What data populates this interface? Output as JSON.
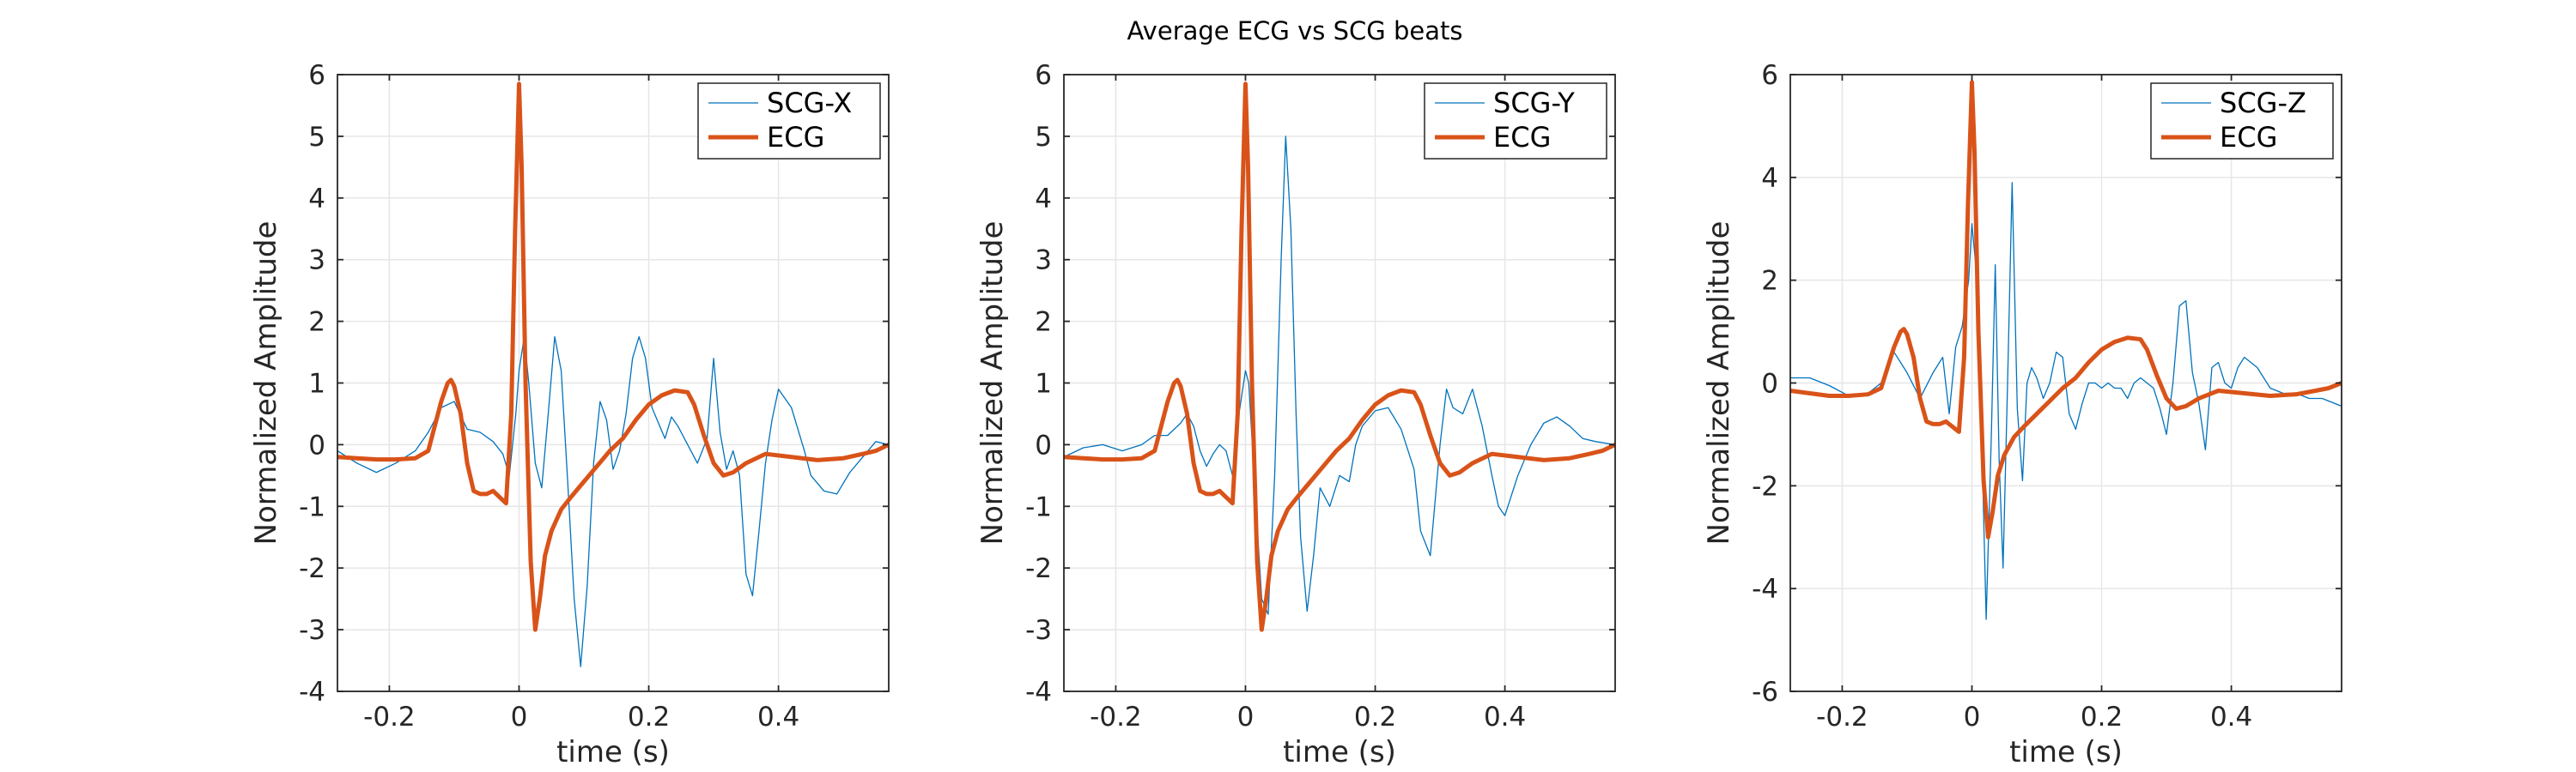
{
  "figure": {
    "title": "Average ECG vs SCG beats"
  },
  "chart_data": [
    {
      "type": "line",
      "xlabel": "time (s)",
      "ylabel": "Normalized Amplitude",
      "xlim": [
        -0.28,
        0.57
      ],
      "ylim": [
        -4,
        6
      ],
      "xticks": [
        -0.2,
        0,
        0.2,
        0.4
      ],
      "xtick_labels": [
        "-0.2",
        "0",
        "0.2",
        "0.4"
      ],
      "yticks": [
        -4,
        -3,
        -2,
        -1,
        0,
        1,
        2,
        3,
        4,
        5,
        6
      ],
      "ytick_labels": [
        "-4",
        "-3",
        "-2",
        "-1",
        "0",
        "1",
        "2",
        "3",
        "4",
        "5",
        "6"
      ],
      "grid": true,
      "legend_position": "top-right",
      "series": [
        {
          "name": "SCG-X",
          "color": "#0072BD",
          "line_width": "thin",
          "x": [
            -0.28,
            -0.25,
            -0.22,
            -0.19,
            -0.16,
            -0.14,
            -0.12,
            -0.1,
            -0.08,
            -0.06,
            -0.04,
            -0.025,
            -0.015,
            -0.005,
            0.0,
            0.008,
            0.015,
            0.025,
            0.035,
            0.045,
            0.055,
            0.065,
            0.075,
            0.085,
            0.095,
            0.105,
            0.115,
            0.125,
            0.135,
            0.145,
            0.155,
            0.165,
            0.175,
            0.185,
            0.195,
            0.205,
            0.215,
            0.225,
            0.235,
            0.245,
            0.26,
            0.275,
            0.29,
            0.3,
            0.31,
            0.32,
            0.33,
            0.34,
            0.35,
            0.36,
            0.37,
            0.38,
            0.39,
            0.4,
            0.42,
            0.44,
            0.45,
            0.47,
            0.49,
            0.51,
            0.53,
            0.55,
            0.57
          ],
          "y": [
            -0.1,
            -0.3,
            -0.45,
            -0.3,
            -0.1,
            0.2,
            0.6,
            0.7,
            0.25,
            0.2,
            0.05,
            -0.15,
            -0.5,
            0.5,
            1.2,
            1.75,
            1.0,
            -0.3,
            -0.7,
            0.5,
            1.75,
            1.2,
            -0.6,
            -2.5,
            -3.6,
            -2.3,
            -0.3,
            0.7,
            0.4,
            -0.4,
            -0.1,
            0.5,
            1.4,
            1.75,
            1.4,
            0.6,
            0.35,
            0.1,
            0.45,
            0.3,
            0.0,
            -0.3,
            0.1,
            1.4,
            0.2,
            -0.4,
            -0.1,
            -0.5,
            -2.1,
            -2.45,
            -1.4,
            -0.3,
            0.4,
            0.9,
            0.6,
            -0.1,
            -0.5,
            -0.75,
            -0.8,
            -0.45,
            -0.2,
            0.05,
            0.0
          ]
        },
        {
          "name": "ECG",
          "color": "#D95319",
          "line_width": "thick",
          "x": [
            -0.28,
            -0.25,
            -0.22,
            -0.19,
            -0.16,
            -0.14,
            -0.13,
            -0.12,
            -0.11,
            -0.105,
            -0.1,
            -0.09,
            -0.08,
            -0.07,
            -0.06,
            -0.05,
            -0.04,
            -0.03,
            -0.02,
            -0.012,
            -0.006,
            0.0,
            0.004,
            0.01,
            0.018,
            0.025,
            0.032,
            0.04,
            0.05,
            0.065,
            0.08,
            0.1,
            0.12,
            0.14,
            0.16,
            0.18,
            0.2,
            0.22,
            0.24,
            0.26,
            0.27,
            0.285,
            0.3,
            0.315,
            0.33,
            0.35,
            0.38,
            0.42,
            0.46,
            0.5,
            0.53,
            0.55,
            0.57
          ],
          "y": [
            -0.2,
            -0.22,
            -0.24,
            -0.24,
            -0.22,
            -0.1,
            0.3,
            0.7,
            1.0,
            1.05,
            0.95,
            0.5,
            -0.3,
            -0.75,
            -0.8,
            -0.8,
            -0.75,
            -0.85,
            -0.95,
            0.5,
            3.5,
            5.85,
            4.5,
            1.0,
            -1.9,
            -3.0,
            -2.5,
            -1.8,
            -1.4,
            -1.05,
            -0.85,
            -0.6,
            -0.35,
            -0.1,
            0.1,
            0.4,
            0.65,
            0.8,
            0.88,
            0.85,
            0.65,
            0.15,
            -0.3,
            -0.5,
            -0.45,
            -0.3,
            -0.15,
            -0.2,
            -0.25,
            -0.22,
            -0.15,
            -0.1,
            0.0
          ]
        }
      ]
    },
    {
      "type": "line",
      "xlabel": "time (s)",
      "ylabel": "Normalized Amplitude",
      "xlim": [
        -0.28,
        0.57
      ],
      "ylim": [
        -4,
        6
      ],
      "xticks": [
        -0.2,
        0,
        0.2,
        0.4
      ],
      "xtick_labels": [
        "-0.2",
        "0",
        "0.2",
        "0.4"
      ],
      "yticks": [
        -4,
        -3,
        -2,
        -1,
        0,
        1,
        2,
        3,
        4,
        5,
        6
      ],
      "ytick_labels": [
        "-4",
        "-3",
        "-2",
        "-1",
        "0",
        "1",
        "2",
        "3",
        "4",
        "5",
        "6"
      ],
      "grid": true,
      "legend_position": "top-right",
      "series": [
        {
          "name": "SCG-Y",
          "color": "#0072BD",
          "line_width": "thin",
          "x": [
            -0.28,
            -0.25,
            -0.22,
            -0.19,
            -0.16,
            -0.14,
            -0.12,
            -0.1,
            -0.09,
            -0.08,
            -0.07,
            -0.06,
            -0.05,
            -0.04,
            -0.03,
            -0.02,
            -0.01,
            0.0,
            0.005,
            0.015,
            0.025,
            0.035,
            0.045,
            0.055,
            0.062,
            0.07,
            0.078,
            0.085,
            0.095,
            0.105,
            0.115,
            0.13,
            0.145,
            0.16,
            0.17,
            0.18,
            0.2,
            0.22,
            0.24,
            0.26,
            0.27,
            0.285,
            0.3,
            0.31,
            0.32,
            0.335,
            0.35,
            0.365,
            0.38,
            0.39,
            0.4,
            0.42,
            0.44,
            0.46,
            0.48,
            0.5,
            0.52,
            0.54,
            0.57
          ],
          "y": [
            -0.2,
            -0.05,
            0.0,
            -0.1,
            0.0,
            0.15,
            0.15,
            0.35,
            0.5,
            0.3,
            -0.1,
            -0.35,
            -0.15,
            0.0,
            -0.1,
            -0.5,
            0.5,
            1.2,
            1.0,
            -0.8,
            -2.5,
            -2.75,
            -0.5,
            3.0,
            5.0,
            3.5,
            0.5,
            -1.5,
            -2.7,
            -1.8,
            -0.7,
            -1.0,
            -0.5,
            -0.6,
            0.0,
            0.3,
            0.55,
            0.6,
            0.25,
            -0.4,
            -1.4,
            -1.8,
            0.0,
            0.9,
            0.6,
            0.5,
            0.9,
            0.3,
            -0.5,
            -1.0,
            -1.15,
            -0.5,
            0.0,
            0.35,
            0.45,
            0.3,
            0.1,
            0.05,
            0.0
          ]
        },
        {
          "name": "ECG",
          "color": "#D95319",
          "line_width": "thick",
          "x": [
            -0.28,
            -0.25,
            -0.22,
            -0.19,
            -0.16,
            -0.14,
            -0.13,
            -0.12,
            -0.11,
            -0.105,
            -0.1,
            -0.09,
            -0.08,
            -0.07,
            -0.06,
            -0.05,
            -0.04,
            -0.03,
            -0.02,
            -0.012,
            -0.006,
            0.0,
            0.004,
            0.01,
            0.018,
            0.025,
            0.032,
            0.04,
            0.05,
            0.065,
            0.08,
            0.1,
            0.12,
            0.14,
            0.16,
            0.18,
            0.2,
            0.22,
            0.24,
            0.26,
            0.27,
            0.285,
            0.3,
            0.315,
            0.33,
            0.35,
            0.38,
            0.42,
            0.46,
            0.5,
            0.53,
            0.55,
            0.57
          ],
          "y": [
            -0.2,
            -0.22,
            -0.24,
            -0.24,
            -0.22,
            -0.1,
            0.3,
            0.7,
            1.0,
            1.05,
            0.95,
            0.5,
            -0.3,
            -0.75,
            -0.8,
            -0.8,
            -0.75,
            -0.85,
            -0.95,
            0.5,
            3.5,
            5.85,
            4.5,
            1.0,
            -1.9,
            -3.0,
            -2.5,
            -1.8,
            -1.4,
            -1.05,
            -0.85,
            -0.6,
            -0.35,
            -0.1,
            0.1,
            0.4,
            0.65,
            0.8,
            0.88,
            0.85,
            0.65,
            0.15,
            -0.3,
            -0.5,
            -0.45,
            -0.3,
            -0.15,
            -0.2,
            -0.25,
            -0.22,
            -0.15,
            -0.1,
            0.0
          ]
        }
      ]
    },
    {
      "type": "line",
      "xlabel": "time (s)",
      "ylabel": "Normalized Amplitude",
      "xlim": [
        -0.28,
        0.57
      ],
      "ylim": [
        -6,
        6
      ],
      "xticks": [
        -0.2,
        0,
        0.2,
        0.4
      ],
      "xtick_labels": [
        "-0.2",
        "0",
        "0.2",
        "0.4"
      ],
      "yticks": [
        -6,
        -4,
        -2,
        0,
        2,
        4,
        6
      ],
      "ytick_labels": [
        "-6",
        "-4",
        "-2",
        "0",
        "2",
        "4",
        "6"
      ],
      "grid": true,
      "legend_position": "top-right",
      "series": [
        {
          "name": "SCG-Z",
          "color": "#0072BD",
          "line_width": "thin",
          "x": [
            -0.28,
            -0.25,
            -0.22,
            -0.19,
            -0.16,
            -0.14,
            -0.12,
            -0.1,
            -0.08,
            -0.06,
            -0.045,
            -0.035,
            -0.025,
            -0.015,
            -0.005,
            0.0,
            0.008,
            0.015,
            0.022,
            0.03,
            0.036,
            0.042,
            0.048,
            0.055,
            0.062,
            0.07,
            0.078,
            0.085,
            0.092,
            0.1,
            0.11,
            0.12,
            0.13,
            0.14,
            0.15,
            0.16,
            0.17,
            0.18,
            0.19,
            0.2,
            0.21,
            0.22,
            0.23,
            0.24,
            0.25,
            0.26,
            0.27,
            0.28,
            0.29,
            0.3,
            0.31,
            0.32,
            0.33,
            0.34,
            0.35,
            0.36,
            0.37,
            0.38,
            0.39,
            0.4,
            0.41,
            0.42,
            0.44,
            0.46,
            0.48,
            0.5,
            0.52,
            0.54,
            0.57
          ],
          "y": [
            0.1,
            0.1,
            -0.05,
            -0.25,
            -0.2,
            0.0,
            0.6,
            0.2,
            -0.3,
            0.2,
            0.5,
            -0.6,
            0.7,
            1.1,
            2.0,
            3.1,
            2.0,
            -1.0,
            -4.6,
            -1.0,
            2.3,
            -1.5,
            -3.6,
            0.0,
            3.9,
            -0.5,
            -1.9,
            0.0,
            0.3,
            0.1,
            -0.3,
            0.0,
            0.6,
            0.5,
            -0.6,
            -0.9,
            -0.4,
            0.0,
            0.0,
            -0.1,
            0.0,
            -0.1,
            -0.1,
            -0.3,
            0.0,
            0.1,
            0.0,
            -0.1,
            -0.5,
            -1.0,
            0.0,
            1.5,
            1.6,
            0.2,
            -0.4,
            -1.3,
            0.3,
            0.4,
            0.0,
            -0.1,
            0.3,
            0.5,
            0.3,
            -0.1,
            -0.2,
            -0.2,
            -0.3,
            -0.3,
            -0.45
          ]
        },
        {
          "name": "ECG",
          "color": "#D95319",
          "line_width": "thick",
          "x": [
            -0.28,
            -0.25,
            -0.22,
            -0.19,
            -0.16,
            -0.14,
            -0.13,
            -0.12,
            -0.11,
            -0.105,
            -0.1,
            -0.09,
            -0.08,
            -0.07,
            -0.06,
            -0.05,
            -0.04,
            -0.03,
            -0.02,
            -0.012,
            -0.006,
            0.0,
            0.004,
            0.01,
            0.018,
            0.025,
            0.032,
            0.04,
            0.05,
            0.065,
            0.08,
            0.1,
            0.12,
            0.14,
            0.16,
            0.18,
            0.2,
            0.22,
            0.24,
            0.26,
            0.27,
            0.285,
            0.3,
            0.315,
            0.33,
            0.35,
            0.38,
            0.42,
            0.46,
            0.5,
            0.53,
            0.55,
            0.57
          ],
          "y": [
            -0.15,
            -0.2,
            -0.25,
            -0.25,
            -0.22,
            -0.1,
            0.3,
            0.7,
            1.0,
            1.05,
            0.95,
            0.5,
            -0.3,
            -0.75,
            -0.8,
            -0.8,
            -0.75,
            -0.85,
            -0.95,
            0.5,
            3.5,
            5.85,
            4.5,
            1.0,
            -1.9,
            -3.0,
            -2.5,
            -1.8,
            -1.4,
            -1.05,
            -0.85,
            -0.6,
            -0.35,
            -0.1,
            0.1,
            0.4,
            0.65,
            0.8,
            0.88,
            0.85,
            0.65,
            0.15,
            -0.3,
            -0.5,
            -0.45,
            -0.3,
            -0.15,
            -0.2,
            -0.25,
            -0.22,
            -0.15,
            -0.1,
            0.0
          ]
        }
      ]
    }
  ]
}
